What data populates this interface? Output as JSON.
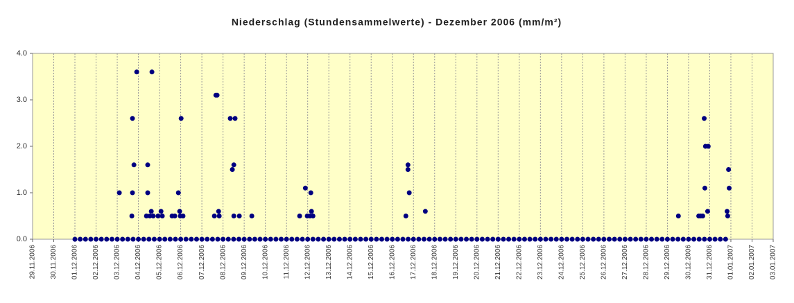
{
  "chart_data": {
    "type": "scatter",
    "title": "Niederschlag (Stundensammelwerte) - Dezember 2006 (mm/m²)",
    "color": "#000080",
    "xlim": [
      0,
      35
    ],
    "xticks": [
      {
        "value": 0,
        "label": "29.11.2006"
      },
      {
        "value": 1,
        "label": "30.11.2006"
      },
      {
        "value": 2,
        "label": "01.12.2006"
      },
      {
        "value": 3,
        "label": "02.12.2006"
      },
      {
        "value": 4,
        "label": "03.12.2006"
      },
      {
        "value": 5,
        "label": "04.12.2006"
      },
      {
        "value": 6,
        "label": "05.12.2006"
      },
      {
        "value": 7,
        "label": "06.12.2006"
      },
      {
        "value": 8,
        "label": "07.12.2006"
      },
      {
        "value": 9,
        "label": "08.12.2006"
      },
      {
        "value": 10,
        "label": "09.12.2006"
      },
      {
        "value": 11,
        "label": "10.12.2006"
      },
      {
        "value": 12,
        "label": "11.12.2006"
      },
      {
        "value": 13,
        "label": "12.12.2006"
      },
      {
        "value": 14,
        "label": "13.12.2006"
      },
      {
        "value": 15,
        "label": "14.12.2006"
      },
      {
        "value": 16,
        "label": "15.12.2006"
      },
      {
        "value": 17,
        "label": "16.12.2006"
      },
      {
        "value": 18,
        "label": "17.12.2006"
      },
      {
        "value": 19,
        "label": "18.12.2006"
      },
      {
        "value": 20,
        "label": "19.12.2006"
      },
      {
        "value": 21,
        "label": "20.12.2006"
      },
      {
        "value": 22,
        "label": "21.12.2006"
      },
      {
        "value": 23,
        "label": "22.12.2006"
      },
      {
        "value": 24,
        "label": "23.12.2006"
      },
      {
        "value": 25,
        "label": "24.12.2006"
      },
      {
        "value": 26,
        "label": "25.12.2006"
      },
      {
        "value": 27,
        "label": "26.12.2006"
      },
      {
        "value": 28,
        "label": "27.12.2006"
      },
      {
        "value": 29,
        "label": "28.12.2006"
      },
      {
        "value": 30,
        "label": "29.12.2006"
      },
      {
        "value": 31,
        "label": "30.12.2006"
      },
      {
        "value": 32,
        "label": "31.12.2006"
      },
      {
        "value": 33,
        "label": "01.01.2007"
      },
      {
        "value": 34,
        "label": "02.01.2007"
      },
      {
        "value": 35,
        "label": "03.01.2007"
      }
    ],
    "ylim": [
      0,
      4
    ],
    "yticks": [
      {
        "value": 0,
        "label": "0.0"
      },
      {
        "value": 1,
        "label": "1.0"
      },
      {
        "value": 2,
        "label": "2.0"
      },
      {
        "value": 3,
        "label": "3.0"
      },
      {
        "value": 4,
        "label": "4.0"
      }
    ],
    "grid": true,
    "x": [
      2,
      2.25,
      2.5,
      2.75,
      3,
      3.25,
      3.5,
      3.75,
      4,
      4.25,
      4.5,
      4.75,
      5,
      5.25,
      5.5,
      5.75,
      6,
      6.25,
      6.5,
      6.75,
      7,
      7.25,
      7.5,
      7.75,
      8,
      8.25,
      8.5,
      8.75,
      9,
      9.25,
      9.5,
      9.75,
      10,
      10.25,
      10.5,
      10.75,
      11,
      11.25,
      11.5,
      11.75,
      12,
      12.25,
      12.5,
      12.75,
      13,
      13.25,
      13.5,
      13.75,
      14,
      14.25,
      14.5,
      14.75,
      15,
      15.25,
      15.5,
      15.75,
      16,
      16.25,
      16.5,
      16.75,
      17,
      17.25,
      17.5,
      17.75,
      18,
      18.25,
      18.5,
      18.75,
      19,
      19.25,
      19.5,
      19.75,
      20,
      20.25,
      20.5,
      20.75,
      21,
      21.25,
      21.5,
      21.75,
      22,
      22.25,
      22.5,
      22.75,
      23,
      23.25,
      23.5,
      23.75,
      24,
      24.25,
      24.5,
      24.75,
      25,
      25.25,
      25.5,
      25.75,
      26,
      26.25,
      26.5,
      26.75,
      27,
      27.25,
      27.5,
      27.75,
      28,
      28.25,
      28.5,
      28.75,
      29,
      29.25,
      29.5,
      29.75,
      30,
      30.25,
      30.5,
      30.75,
      31,
      31.25,
      31.5,
      31.75,
      32,
      32.25,
      32.5,
      32.75,
      4.1,
      4.69,
      4.72,
      4.79,
      4.72,
      4.92,
      5.38,
      5.44,
      5.44,
      5.54,
      5.61,
      5.64,
      5.7,
      5.93,
      6.07,
      6.13,
      6.59,
      6.72,
      6.89,
      6.95,
      6.98,
      7.02,
      7.11,
      8.59,
      8.66,
      8.72,
      8.79,
      8.82,
      9.34,
      9.44,
      9.51,
      9.57,
      9.51,
      9.77,
      10.36,
      12.62,
      12.89,
      12.98,
      13.11,
      13.15,
      13.18,
      13.25,
      17.64,
      17.74,
      17.74,
      17.8,
      18.56,
      30.52,
      31.48,
      31.57,
      31.67,
      31.74,
      31.77,
      31.8,
      31.93,
      31.9,
      32.82,
      32.85,
      32.89,
      32.92
    ],
    "values": [
      0,
      0,
      0,
      0,
      0,
      0,
      0,
      0,
      0,
      0,
      0,
      0,
      0,
      0,
      0,
      0,
      0,
      0,
      0,
      0,
      0,
      0,
      0,
      0,
      0,
      0,
      0,
      0,
      0,
      0,
      0,
      0,
      0,
      0,
      0,
      0,
      0,
      0,
      0,
      0,
      0,
      0,
      0,
      0,
      0,
      0,
      0,
      0,
      0,
      0,
      0,
      0,
      0,
      0,
      0,
      0,
      0,
      0,
      0,
      0,
      0,
      0,
      0,
      0,
      0,
      0,
      0,
      0,
      0,
      0,
      0,
      0,
      0,
      0,
      0,
      0,
      0,
      0,
      0,
      0,
      0,
      0,
      0,
      0,
      0,
      0,
      0,
      0,
      0,
      0,
      0,
      0,
      0,
      0,
      0,
      0,
      0,
      0,
      0,
      0,
      0,
      0,
      0,
      0,
      0,
      0,
      0,
      0,
      0,
      0,
      0,
      0,
      0,
      0,
      0,
      0,
      0,
      0,
      0,
      0,
      0,
      0,
      0,
      0,
      1.0,
      0.5,
      1.0,
      1.6,
      2.6,
      3.6,
      0.5,
      1.6,
      1.0,
      0.5,
      0.6,
      3.6,
      0.5,
      0.5,
      0.6,
      0.5,
      0.5,
      0.5,
      1.0,
      0.6,
      0.5,
      2.6,
      0.5,
      0.5,
      3.1,
      3.1,
      0.6,
      0.5,
      2.6,
      1.5,
      1.6,
      2.6,
      0.5,
      0.5,
      0.5,
      0.5,
      1.1,
      0.5,
      0.5,
      1.0,
      0.6,
      0.5,
      0.5,
      1.6,
      1.5,
      1.0,
      0.6,
      0.5,
      0.5,
      0.5,
      0.5,
      2.6,
      1.1,
      2.0,
      2.0,
      0.6,
      0.6,
      0.5,
      1.5,
      1.1
    ]
  }
}
